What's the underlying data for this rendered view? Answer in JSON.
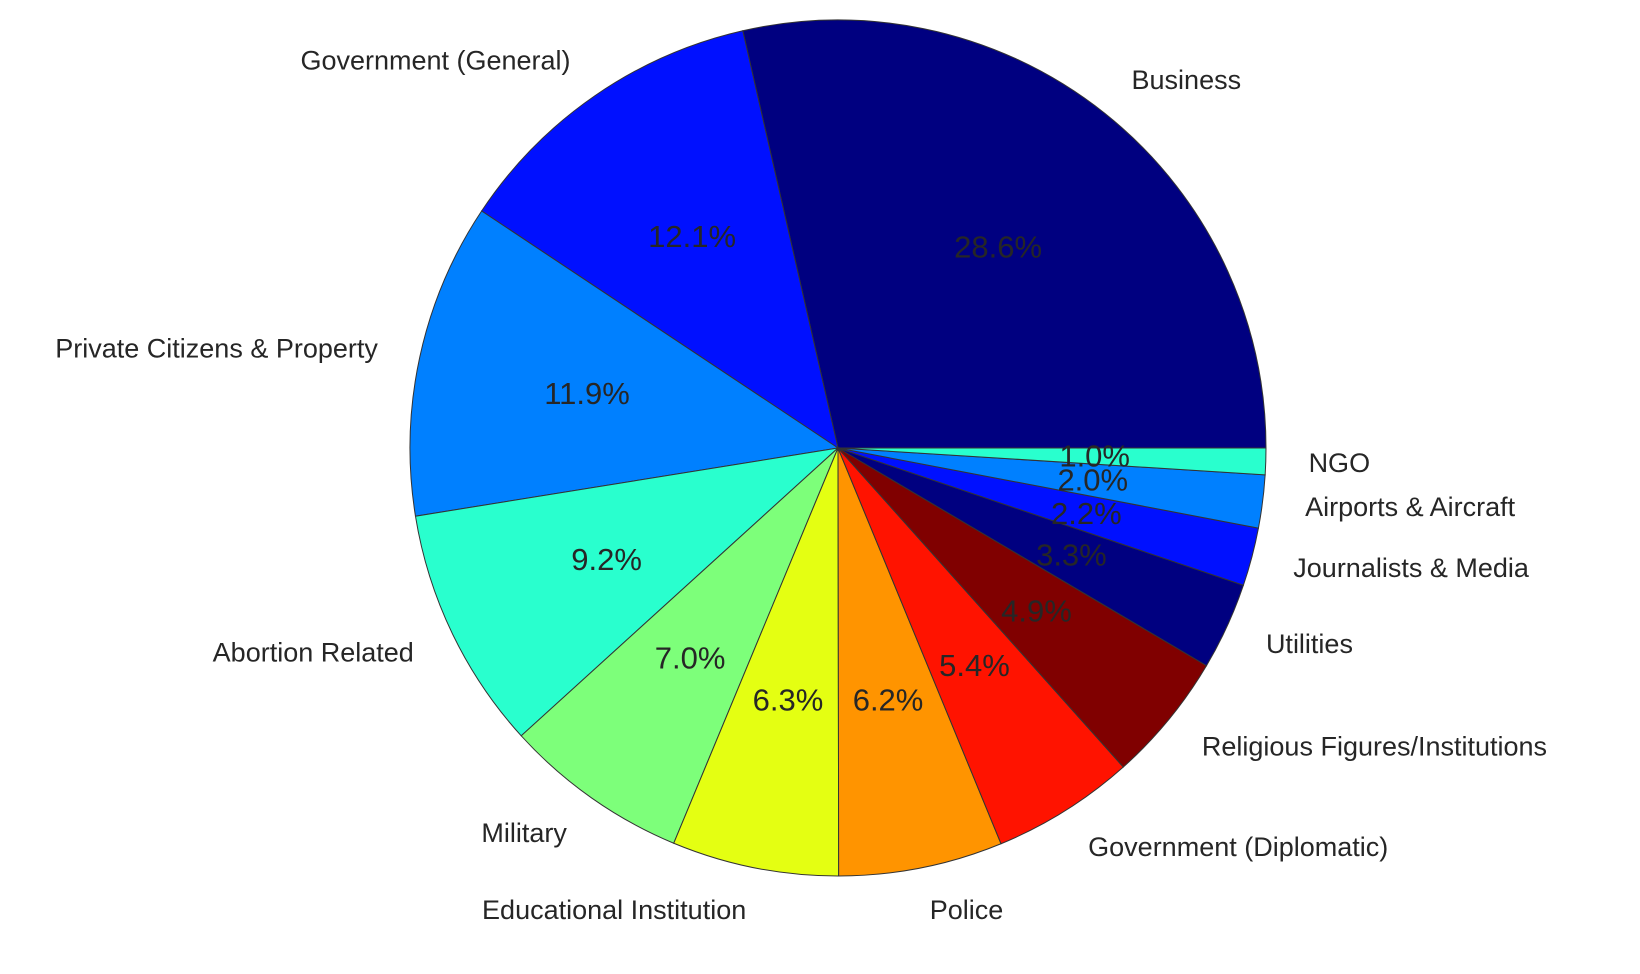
{
  "chart_data": {
    "type": "pie",
    "start_angle_deg": 0,
    "direction": "counterclockwise",
    "slices": [
      {
        "label": "Business",
        "value": 28.6,
        "pct_label": "28.6%",
        "color": "#000080"
      },
      {
        "label": "Government (General)",
        "value": 12.1,
        "pct_label": "12.1%",
        "color": "#0010ff"
      },
      {
        "label": "Private Citizens & Property",
        "value": 11.9,
        "pct_label": "11.9%",
        "color": "#0080ff"
      },
      {
        "label": "Abortion Related",
        "value": 9.2,
        "pct_label": "9.2%",
        "color": "#29ffce"
      },
      {
        "label": "Military",
        "value": 7.0,
        "pct_label": "7.0%",
        "color": "#7dff7a"
      },
      {
        "label": "Educational Institution",
        "value": 6.3,
        "pct_label": "6.3%",
        "color": "#e4ff12"
      },
      {
        "label": "Police",
        "value": 6.2,
        "pct_label": "6.2%",
        "color": "#ff9400"
      },
      {
        "label": "Government (Diplomatic)",
        "value": 5.4,
        "pct_label": "5.4%",
        "color": "#ff1300"
      },
      {
        "label": "Religious Figures/Institutions",
        "value": 4.9,
        "pct_label": "4.9%",
        "color": "#800000"
      },
      {
        "label": "Utilities",
        "value": 3.3,
        "pct_label": "3.3%",
        "color": "#000080"
      },
      {
        "label": "Journalists & Media",
        "value": 2.2,
        "pct_label": "2.2%",
        "color": "#0010ff"
      },
      {
        "label": "Airports & Aircraft",
        "value": 2.0,
        "pct_label": "2.0%",
        "color": "#0080ff"
      },
      {
        "label": "NGO",
        "value": 1.0,
        "pct_label": "1.0%",
        "color": "#29ffce"
      }
    ],
    "legend": "none"
  }
}
